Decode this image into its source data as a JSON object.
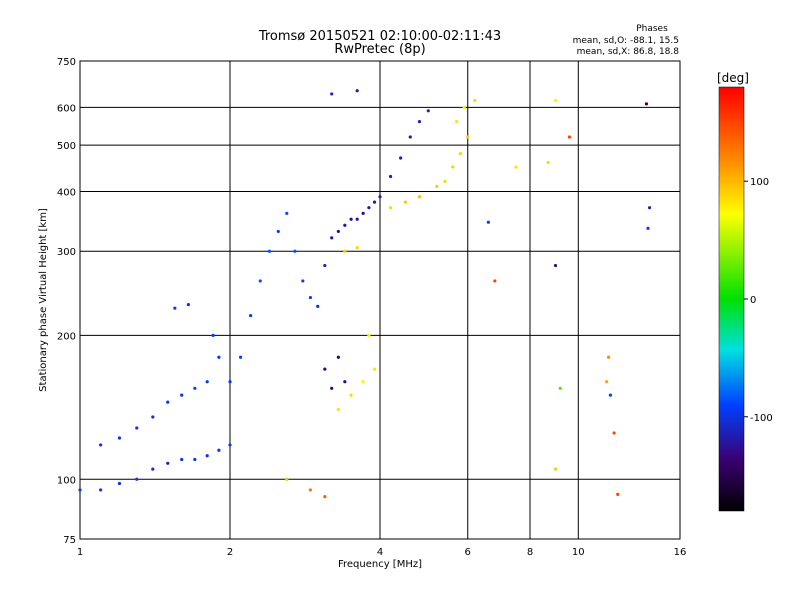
{
  "chart_data": {
    "type": "scatter",
    "title": "Tromsø 20150521 02:10:00-02:11:43",
    "subtitle": "RwPretec (8p)",
    "xlabel": "Frequency [MHz]",
    "ylabel": "Stationary phase Virtual Height [km]",
    "x_scale": "log",
    "y_scale": "log",
    "xlim": [
      1,
      16
    ],
    "ylim": [
      75,
      750
    ],
    "x_ticks": [
      1,
      2,
      4,
      6,
      8,
      10,
      16
    ],
    "y_ticks": [
      75,
      100,
      200,
      300,
      400,
      500,
      600,
      750
    ],
    "x_grid": [
      2,
      4,
      6,
      8,
      10
    ],
    "y_grid": [
      100,
      200,
      300,
      400,
      500,
      600
    ],
    "grid": true,
    "phase_info": {
      "title": "Phases",
      "line_o": "mean, sd,O: -88.1, 15.5",
      "line_x": "mean, sd,X: 86.8, 18.8"
    },
    "colorbar": {
      "label": "[deg]",
      "range": [
        -180,
        180
      ],
      "ticks": [
        100,
        0,
        -100
      ]
    },
    "points": [
      [
        1.0,
        95,
        -95
      ],
      [
        1.1,
        95,
        -100
      ],
      [
        1.2,
        98,
        -100
      ],
      [
        1.3,
        100,
        -95
      ],
      [
        1.4,
        105,
        -100
      ],
      [
        1.5,
        108,
        -110
      ],
      [
        1.6,
        110,
        -100
      ],
      [
        1.7,
        110,
        -95
      ],
      [
        1.8,
        112,
        -100
      ],
      [
        1.9,
        115,
        -100
      ],
      [
        2.0,
        118,
        -95
      ],
      [
        1.1,
        118,
        -100
      ],
      [
        1.2,
        122,
        -100
      ],
      [
        1.3,
        128,
        -95
      ],
      [
        1.4,
        135,
        -100
      ],
      [
        1.5,
        145,
        -95
      ],
      [
        1.6,
        150,
        -100
      ],
      [
        1.7,
        155,
        -90
      ],
      [
        1.8,
        160,
        -95
      ],
      [
        1.55,
        228,
        -95
      ],
      [
        1.65,
        232,
        -100
      ],
      [
        1.85,
        200,
        -90
      ],
      [
        1.9,
        180,
        -95
      ],
      [
        2.0,
        160,
        -95
      ],
      [
        2.1,
        180,
        -90
      ],
      [
        2.2,
        220,
        -90
      ],
      [
        2.3,
        260,
        -85
      ],
      [
        2.4,
        300,
        -85
      ],
      [
        2.5,
        330,
        -90
      ],
      [
        2.6,
        360,
        -85
      ],
      [
        2.7,
        300,
        -85
      ],
      [
        2.8,
        260,
        -90
      ],
      [
        2.9,
        240,
        -95
      ],
      [
        3.0,
        230,
        -100
      ],
      [
        3.1,
        280,
        -115
      ],
      [
        3.2,
        320,
        -120
      ],
      [
        3.3,
        330,
        -125
      ],
      [
        3.4,
        340,
        -120
      ],
      [
        3.5,
        350,
        -125
      ],
      [
        3.6,
        350,
        -120
      ],
      [
        3.7,
        360,
        -125
      ],
      [
        3.8,
        370,
        -120
      ],
      [
        3.9,
        380,
        -115
      ],
      [
        4.0,
        390,
        -110
      ],
      [
        4.2,
        430,
        -110
      ],
      [
        4.4,
        470,
        -115
      ],
      [
        4.6,
        520,
        -115
      ],
      [
        4.8,
        560,
        -110
      ],
      [
        5.0,
        590,
        -110
      ],
      [
        3.2,
        640,
        -110
      ],
      [
        3.6,
        650,
        -115
      ],
      [
        3.1,
        170,
        -130
      ],
      [
        3.3,
        180,
        -135
      ],
      [
        3.4,
        160,
        -130
      ],
      [
        3.2,
        155,
        -135
      ],
      [
        3.3,
        140,
        85
      ],
      [
        3.5,
        150,
        90
      ],
      [
        3.7,
        160,
        80
      ],
      [
        3.9,
        170,
        85
      ],
      [
        3.8,
        200,
        80
      ],
      [
        4.2,
        370,
        90
      ],
      [
        4.5,
        380,
        95
      ],
      [
        4.8,
        390,
        100
      ],
      [
        5.2,
        410,
        95
      ],
      [
        5.4,
        420,
        90
      ],
      [
        5.6,
        450,
        95
      ],
      [
        5.8,
        480,
        90
      ],
      [
        6.0,
        520,
        95
      ],
      [
        5.7,
        560,
        85
      ],
      [
        5.9,
        600,
        80
      ],
      [
        3.4,
        300,
        95
      ],
      [
        3.6,
        305,
        90
      ],
      [
        6.2,
        620,
        90
      ],
      [
        2.9,
        95,
        130
      ],
      [
        3.1,
        92,
        140
      ],
      [
        2.6,
        100,
        100
      ],
      [
        7.5,
        450,
        85
      ],
      [
        8.7,
        460,
        90
      ],
      [
        9.0,
        105,
        95
      ],
      [
        9.6,
        520,
        150
      ],
      [
        9.0,
        620,
        80
      ],
      [
        11.5,
        180,
        120
      ],
      [
        11.4,
        160,
        110
      ],
      [
        11.6,
        150,
        -90
      ],
      [
        11.8,
        125,
        150
      ],
      [
        12.0,
        93,
        150
      ],
      [
        13.7,
        610,
        -140
      ],
      [
        13.9,
        370,
        -110
      ],
      [
        13.8,
        335,
        -100
      ],
      [
        9.0,
        280,
        -130
      ],
      [
        6.8,
        260,
        150
      ],
      [
        9.2,
        155,
        20
      ],
      [
        6.6,
        345,
        -90
      ]
    ]
  }
}
